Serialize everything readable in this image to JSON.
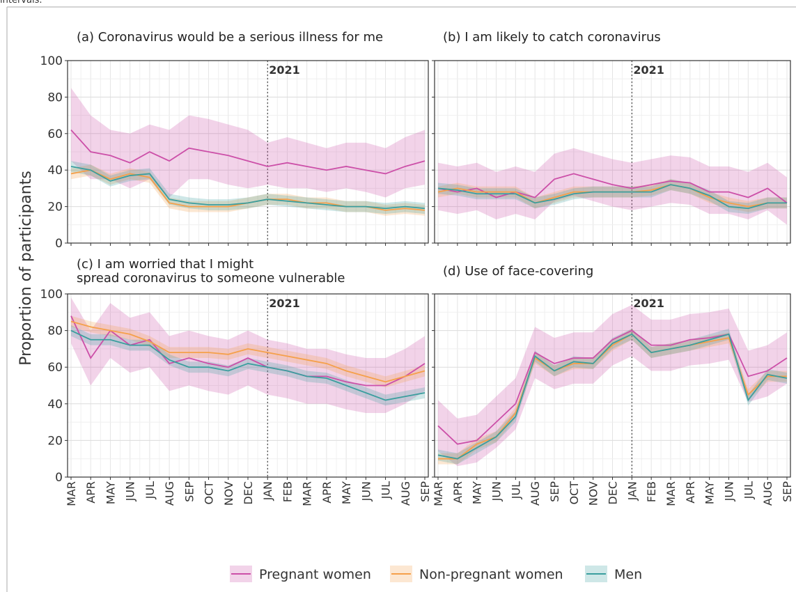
{
  "caption_fragment": "intervals.",
  "y_label": "Proportion of participants",
  "categories": [
    "MAR",
    "APR",
    "MAY",
    "JUN",
    "JUL",
    "AUG",
    "SEP",
    "OCT",
    "NOV",
    "DEC",
    "JAN",
    "FEB",
    "MAR",
    "APR",
    "MAY",
    "JUN",
    "JUL",
    "AUG",
    "SEP"
  ],
  "chart_data": [
    {
      "type": "line",
      "title": "(a) Coronavirus would be a serious illness for me",
      "ylim": [
        0,
        100
      ],
      "yticks": [
        0,
        20,
        40,
        60,
        80,
        100
      ],
      "grid": true,
      "annotation": {
        "label": "2021",
        "category": 10
      },
      "series": [
        {
          "name": "Pregnant women",
          "color": "#cc4fa8",
          "values": [
            62,
            50,
            48,
            44,
            50,
            45,
            52,
            50,
            48,
            45,
            42,
            44,
            42,
            40,
            42,
            40,
            38,
            42,
            45
          ],
          "lower": [
            45,
            35,
            35,
            30,
            35,
            25,
            35,
            35,
            32,
            30,
            32,
            30,
            30,
            28,
            30,
            28,
            25,
            30,
            32
          ],
          "upper": [
            85,
            70,
            62,
            60,
            65,
            62,
            70,
            68,
            65,
            62,
            55,
            58,
            55,
            52,
            55,
            55,
            52,
            58,
            62
          ]
        },
        {
          "name": "Non-pregnant women",
          "color": "#f5a04a",
          "values": [
            38,
            40,
            35,
            38,
            36,
            22,
            20,
            20,
            20,
            22,
            24,
            24,
            22,
            22,
            20,
            20,
            18,
            19,
            18
          ],
          "lower": [
            35,
            37,
            32,
            35,
            33,
            19,
            17,
            17,
            17,
            19,
            21,
            21,
            19,
            19,
            17,
            17,
            15,
            16,
            15
          ],
          "upper": [
            41,
            43,
            38,
            41,
            39,
            25,
            23,
            23,
            23,
            25,
            27,
            27,
            25,
            25,
            23,
            23,
            21,
            22,
            21
          ]
        },
        {
          "name": "Men",
          "color": "#3a9e9e",
          "values": [
            42,
            40,
            34,
            37,
            38,
            24,
            22,
            21,
            21,
            22,
            24,
            23,
            22,
            21,
            20,
            20,
            19,
            20,
            19
          ],
          "lower": [
            39,
            37,
            31,
            34,
            35,
            21,
            19,
            18,
            18,
            19,
            21,
            20,
            19,
            18,
            17,
            17,
            16,
            17,
            16
          ],
          "upper": [
            45,
            43,
            37,
            40,
            41,
            27,
            25,
            24,
            24,
            25,
            27,
            26,
            25,
            24,
            23,
            23,
            22,
            23,
            22
          ]
        }
      ]
    },
    {
      "type": "line",
      "title": "(b) I am likely to catch coronavirus",
      "ylim": [
        0,
        100
      ],
      "yticks": [
        0,
        20,
        40,
        60,
        80,
        100
      ],
      "grid": true,
      "annotation": {
        "label": "2021",
        "category": 10
      },
      "series": [
        {
          "name": "Pregnant women",
          "color": "#cc4fa8",
          "values": [
            30,
            28,
            30,
            25,
            28,
            25,
            35,
            38,
            35,
            32,
            30,
            32,
            34,
            33,
            28,
            28,
            25,
            30,
            22
          ],
          "lower": [
            18,
            16,
            18,
            13,
            16,
            13,
            23,
            26,
            23,
            20,
            18,
            20,
            22,
            21,
            16,
            16,
            13,
            18,
            10
          ],
          "upper": [
            44,
            42,
            44,
            39,
            42,
            39,
            49,
            52,
            49,
            46,
            44,
            46,
            48,
            47,
            42,
            42,
            39,
            44,
            36
          ]
        },
        {
          "name": "Non-pregnant women",
          "color": "#f5a04a",
          "values": [
            28,
            30,
            28,
            28,
            28,
            22,
            25,
            28,
            28,
            28,
            28,
            29,
            32,
            30,
            25,
            22,
            20,
            22,
            22
          ],
          "lower": [
            25,
            27,
            25,
            25,
            25,
            19,
            22,
            25,
            25,
            25,
            25,
            26,
            29,
            27,
            22,
            19,
            17,
            19,
            19
          ],
          "upper": [
            31,
            33,
            31,
            31,
            31,
            25,
            28,
            31,
            31,
            31,
            31,
            32,
            35,
            33,
            28,
            25,
            23,
            25,
            25
          ]
        },
        {
          "name": "Men",
          "color": "#3a9e9e",
          "values": [
            30,
            29,
            27,
            27,
            27,
            22,
            24,
            27,
            28,
            28,
            28,
            28,
            32,
            30,
            26,
            20,
            19,
            22,
            22
          ],
          "lower": [
            27,
            26,
            24,
            24,
            24,
            19,
            21,
            24,
            25,
            25,
            25,
            25,
            29,
            27,
            23,
            17,
            16,
            19,
            19
          ],
          "upper": [
            33,
            32,
            30,
            30,
            30,
            25,
            27,
            30,
            31,
            31,
            31,
            31,
            35,
            33,
            29,
            23,
            22,
            25,
            25
          ]
        }
      ]
    },
    {
      "type": "line",
      "title": "(c) I am worried that I might\nspread coronavirus to someone vulnerable",
      "ylim": [
        0,
        100
      ],
      "yticks": [
        0,
        20,
        40,
        60,
        80,
        100
      ],
      "grid": true,
      "annotation": {
        "label": "2021",
        "category": 10
      },
      "series": [
        {
          "name": "Pregnant women",
          "color": "#cc4fa8",
          "values": [
            88,
            65,
            80,
            72,
            75,
            62,
            65,
            62,
            60,
            65,
            60,
            58,
            55,
            55,
            52,
            50,
            50,
            55,
            62
          ],
          "lower": [
            73,
            50,
            65,
            57,
            60,
            47,
            50,
            47,
            45,
            50,
            45,
            43,
            40,
            40,
            37,
            35,
            35,
            40,
            47
          ],
          "upper": [
            98,
            80,
            95,
            87,
            90,
            77,
            80,
            77,
            75,
            80,
            75,
            73,
            70,
            70,
            67,
            65,
            65,
            70,
            77
          ]
        },
        {
          "name": "Non-pregnant women",
          "color": "#f5a04a",
          "values": [
            85,
            82,
            80,
            78,
            74,
            68,
            68,
            68,
            67,
            70,
            68,
            66,
            64,
            62,
            58,
            55,
            52,
            55,
            58
          ],
          "lower": [
            82,
            79,
            77,
            75,
            71,
            65,
            65,
            65,
            64,
            67,
            65,
            63,
            61,
            59,
            55,
            52,
            49,
            52,
            55
          ],
          "upper": [
            88,
            85,
            83,
            81,
            77,
            71,
            71,
            71,
            70,
            73,
            71,
            69,
            67,
            65,
            61,
            58,
            55,
            58,
            61
          ]
        },
        {
          "name": "Men",
          "color": "#3a9e9e",
          "values": [
            80,
            75,
            75,
            72,
            72,
            64,
            60,
            60,
            58,
            62,
            60,
            58,
            55,
            54,
            50,
            46,
            42,
            44,
            46
          ],
          "lower": [
            77,
            72,
            72,
            69,
            69,
            61,
            57,
            57,
            55,
            59,
            57,
            55,
            52,
            51,
            47,
            43,
            39,
            41,
            43
          ],
          "upper": [
            83,
            78,
            78,
            75,
            75,
            67,
            63,
            63,
            61,
            65,
            63,
            61,
            58,
            57,
            53,
            49,
            45,
            47,
            49
          ]
        }
      ]
    },
    {
      "type": "line",
      "title": "(d) Use of face-covering",
      "ylim": [
        0,
        100
      ],
      "yticks": [
        0,
        20,
        40,
        60,
        80,
        100
      ],
      "grid": true,
      "annotation": {
        "label": "2021",
        "category": 10
      },
      "series": [
        {
          "name": "Pregnant women",
          "color": "#cc4fa8",
          "values": [
            28,
            18,
            20,
            30,
            40,
            68,
            62,
            65,
            65,
            75,
            80,
            72,
            72,
            75,
            76,
            78,
            55,
            58,
            65
          ],
          "lower": [
            14,
            6,
            8,
            16,
            26,
            54,
            48,
            51,
            51,
            61,
            66,
            58,
            58,
            61,
            62,
            64,
            41,
            44,
            51
          ],
          "upper": [
            42,
            32,
            34,
            44,
            54,
            82,
            76,
            79,
            79,
            89,
            94,
            86,
            86,
            89,
            90,
            92,
            69,
            72,
            79
          ]
        },
        {
          "name": "Non-pregnant women",
          "color": "#f5a04a",
          "values": [
            10,
            10,
            18,
            22,
            35,
            65,
            58,
            62,
            62,
            72,
            78,
            68,
            70,
            72,
            74,
            76,
            45,
            55,
            55
          ],
          "lower": [
            7,
            7,
            15,
            19,
            32,
            62,
            55,
            59,
            59,
            69,
            75,
            65,
            67,
            69,
            71,
            73,
            42,
            52,
            52
          ],
          "upper": [
            13,
            13,
            21,
            25,
            38,
            68,
            61,
            65,
            65,
            75,
            81,
            71,
            73,
            75,
            77,
            79,
            48,
            58,
            58
          ]
        },
        {
          "name": "Men",
          "color": "#3a9e9e",
          "values": [
            12,
            10,
            16,
            22,
            33,
            66,
            58,
            63,
            62,
            73,
            78,
            68,
            70,
            72,
            75,
            78,
            42,
            56,
            54
          ],
          "lower": [
            9,
            7,
            13,
            19,
            30,
            63,
            55,
            60,
            59,
            70,
            75,
            65,
            67,
            69,
            72,
            75,
            39,
            53,
            51
          ],
          "upper": [
            15,
            13,
            19,
            25,
            36,
            69,
            61,
            66,
            65,
            76,
            81,
            71,
            73,
            75,
            78,
            81,
            45,
            59,
            57
          ]
        }
      ]
    }
  ]
}
